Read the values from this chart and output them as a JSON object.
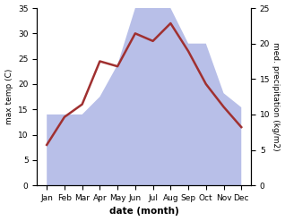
{
  "months": [
    "Jan",
    "Feb",
    "Mar",
    "Apr",
    "May",
    "Jun",
    "Jul",
    "Aug",
    "Sep",
    "Oct",
    "Nov",
    "Dec"
  ],
  "temp": [
    8,
    13.5,
    16,
    24.5,
    23.5,
    30,
    28.5,
    32,
    26.5,
    20,
    15.5,
    11.5
  ],
  "precip": [
    10,
    10,
    10,
    12.5,
    17,
    25,
    35,
    25,
    20,
    20,
    13,
    11
  ],
  "temp_color": "#a03030",
  "precip_fill_color": "#b8bfe8",
  "left_ylim": [
    0,
    35
  ],
  "right_ylim": [
    0,
    25
  ],
  "left_yticks": [
    0,
    5,
    10,
    15,
    20,
    25,
    30,
    35
  ],
  "right_yticks": [
    0,
    5,
    10,
    15,
    20,
    25
  ],
  "xlabel": "date (month)",
  "ylabel_left": "max temp (C)",
  "ylabel_right": "med. precipitation (kg/m2)",
  "bg_color": "#ffffff"
}
